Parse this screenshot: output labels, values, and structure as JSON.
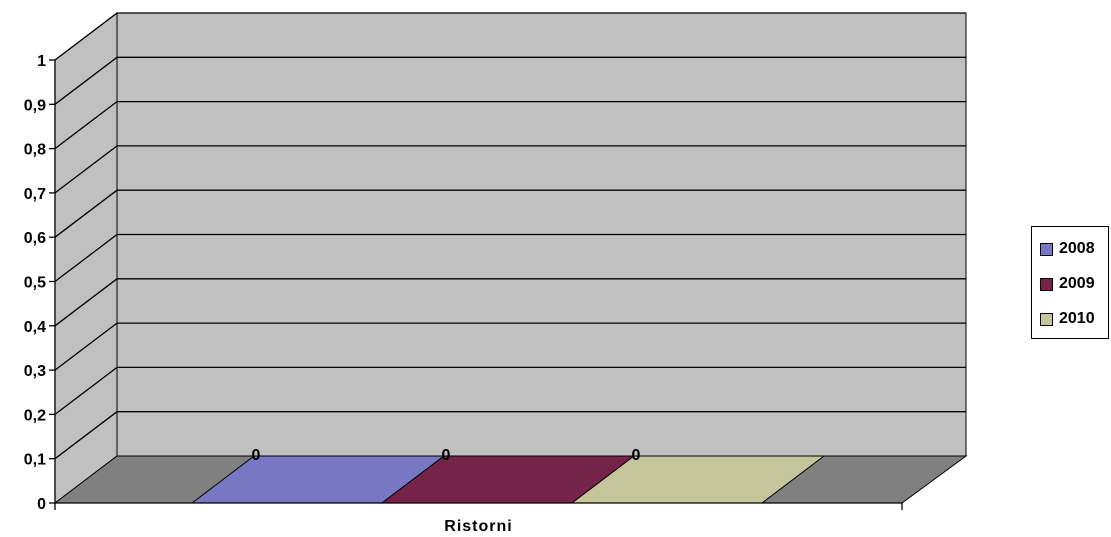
{
  "chart_data": {
    "type": "bar",
    "title": "",
    "xlabel": "",
    "ylabel": "",
    "categories": [
      "Ristorni"
    ],
    "series": [
      {
        "name": "2008",
        "values": [
          0
        ],
        "color": "#7777c3"
      },
      {
        "name": "2009",
        "values": [
          0
        ],
        "color": "#76234a"
      },
      {
        "name": "2010",
        "values": [
          0
        ],
        "color": "#c5c59b"
      }
    ],
    "ylim": [
      0,
      1
    ],
    "y_ticks": [
      "0",
      "0,1",
      "0,2",
      "0,3",
      "0,4",
      "0,5",
      "0,6",
      "0,7",
      "0,8",
      "0,9",
      "1"
    ],
    "data_labels": [
      "0",
      "0",
      "0"
    ],
    "grid": true,
    "legend_position": "right",
    "three_d": true,
    "colors": {
      "wall": "#c0c0c0",
      "floor": "#808080",
      "grid": "#000000"
    }
  }
}
